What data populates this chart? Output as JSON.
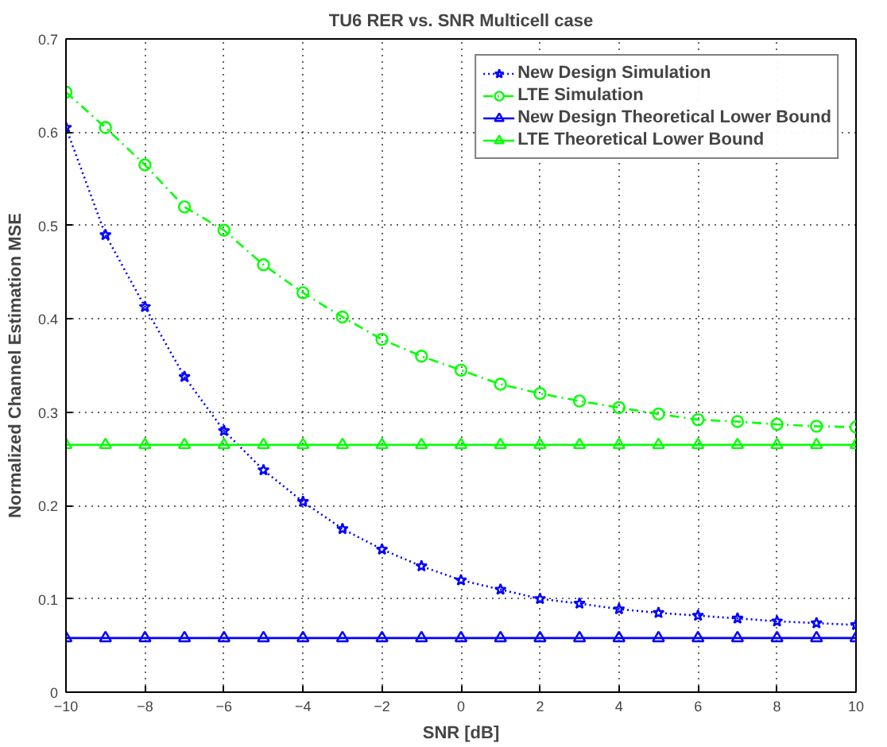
{
  "chart_data": {
    "type": "line",
    "title": "TU6 RER vs. SNR Multicell case",
    "xlabel": "SNR [dB]",
    "ylabel": "Normalized Channel Estimation MSE",
    "x": [
      -10,
      -9,
      -8,
      -7,
      -6,
      -5,
      -4,
      -3,
      -2,
      -1,
      0,
      1,
      2,
      3,
      4,
      5,
      6,
      7,
      8,
      9,
      10
    ],
    "series": [
      {
        "name": "New Design Simulation",
        "color": "#0000ff",
        "marker": "star",
        "line_style": "dotted",
        "values": [
          0.605,
          0.49,
          0.413,
          0.338,
          0.28,
          0.238,
          0.204,
          0.175,
          0.153,
          0.135,
          0.12,
          0.11,
          0.1,
          0.095,
          0.089,
          0.085,
          0.082,
          0.079,
          0.076,
          0.074,
          0.072
        ]
      },
      {
        "name": "LTE Simulation",
        "color": "#00ff00",
        "marker": "circle",
        "line_style": "dashed",
        "values": [
          0.643,
          0.605,
          0.565,
          0.52,
          0.495,
          0.458,
          0.428,
          0.402,
          0.378,
          0.36,
          0.345,
          0.33,
          0.32,
          0.312,
          0.305,
          0.298,
          0.292,
          0.29,
          0.287,
          0.285,
          0.284
        ]
      },
      {
        "name": "New Design Theoretical Lower Bound",
        "color": "#0000ff",
        "marker": "triangle",
        "line_style": "solid",
        "values": [
          0.058,
          0.058,
          0.058,
          0.058,
          0.058,
          0.058,
          0.058,
          0.058,
          0.058,
          0.058,
          0.058,
          0.058,
          0.058,
          0.058,
          0.058,
          0.058,
          0.058,
          0.058,
          0.058,
          0.058,
          0.058
        ]
      },
      {
        "name": "LTE Theoretical Lower Bound",
        "color": "#00ff00",
        "marker": "triangle",
        "line_style": "solid",
        "values": [
          0.265,
          0.265,
          0.265,
          0.265,
          0.265,
          0.265,
          0.265,
          0.265,
          0.265,
          0.265,
          0.265,
          0.265,
          0.265,
          0.265,
          0.265,
          0.265,
          0.265,
          0.265,
          0.265,
          0.265,
          0.265
        ]
      }
    ],
    "xlim": [
      -10,
      10
    ],
    "xticks": [
      -10,
      -8,
      -6,
      -4,
      -2,
      0,
      2,
      4,
      6,
      8,
      10
    ],
    "ylim": [
      0,
      0.7
    ],
    "yticks": [
      0,
      0.1,
      0.2,
      0.3,
      0.4,
      0.5,
      0.6,
      0.7
    ],
    "grid": true,
    "legend": "top right"
  }
}
